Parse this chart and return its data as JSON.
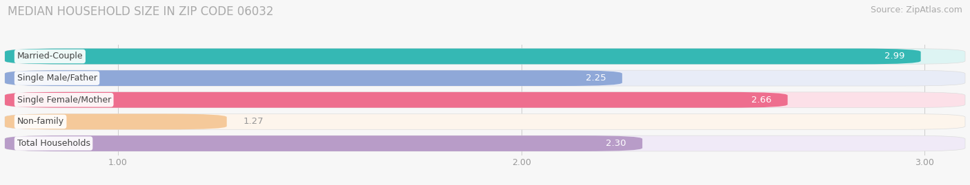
{
  "title": "MEDIAN HOUSEHOLD SIZE IN ZIP CODE 06032",
  "source": "Source: ZipAtlas.com",
  "categories": [
    "Married-Couple",
    "Single Male/Father",
    "Single Female/Mother",
    "Non-family",
    "Total Households"
  ],
  "values": [
    2.99,
    2.25,
    2.66,
    1.27,
    2.3
  ],
  "bar_colors": [
    "#35b8b4",
    "#8fa8d8",
    "#ee6e8e",
    "#f5c99a",
    "#b89cc8"
  ],
  "bar_bg_colors": [
    "#ddf4f3",
    "#e8ecf7",
    "#fce0e8",
    "#fdf5ec",
    "#f0eaf7"
  ],
  "xlim_left": 0.72,
  "xlim_right": 3.1,
  "xticks": [
    1.0,
    2.0,
    3.0
  ],
  "label_color_inside": "#ffffff",
  "label_color_outside": "#999999",
  "title_fontsize": 12,
  "source_fontsize": 9,
  "value_fontsize": 9.5,
  "cat_fontsize": 9,
  "tick_fontsize": 9,
  "background_color": "#f7f7f7",
  "bar_height": 0.72,
  "value_threshold": 1.8
}
